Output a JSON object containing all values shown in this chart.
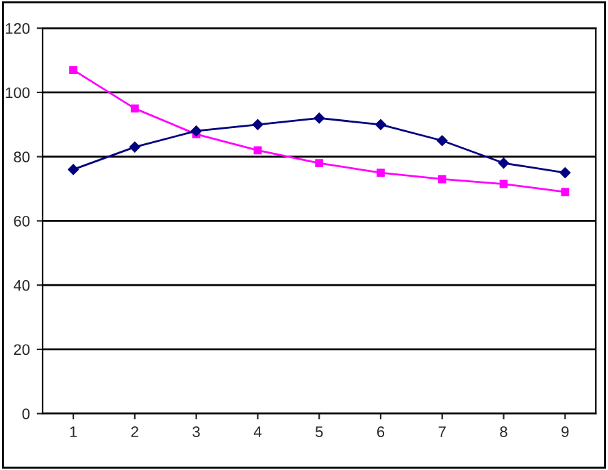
{
  "chart_data": {
    "type": "line",
    "categories": [
      "1",
      "2",
      "3",
      "4",
      "5",
      "6",
      "7",
      "8",
      "9"
    ],
    "series": [
      {
        "color": "#000080",
        "marker": "diamond",
        "values": [
          76,
          83,
          88,
          90,
          92,
          90,
          85,
          78,
          75
        ]
      },
      {
        "color": "#ff00ff",
        "marker": "square",
        "values": [
          107,
          95,
          87,
          82,
          78,
          75,
          73,
          71.5,
          69
        ]
      }
    ],
    "ylim": [
      0,
      120
    ],
    "yticks": [
      0,
      20,
      40,
      60,
      80,
      100,
      120
    ],
    "grid": "y",
    "legend": false,
    "line_style": "solid"
  }
}
